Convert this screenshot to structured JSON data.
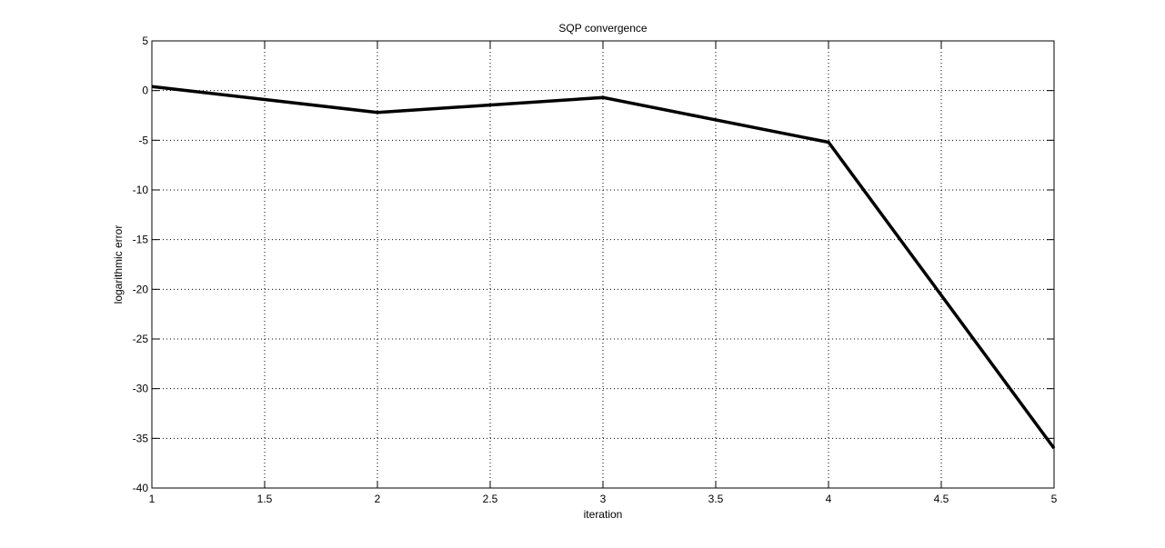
{
  "chart_data": {
    "type": "line",
    "title": "SQP convergence",
    "xlabel": "iteration",
    "ylabel": "logarithmic error",
    "xlim": [
      1,
      5
    ],
    "ylim": [
      -40,
      5
    ],
    "x_ticks": [
      "1",
      "1.5",
      "2",
      "2.5",
      "3",
      "3.5",
      "4",
      "4.5",
      "5"
    ],
    "y_ticks": [
      "5",
      "0",
      "-5",
      "-10",
      "-15",
      "-20",
      "-25",
      "-30",
      "-35",
      "-40"
    ],
    "grid": true,
    "series": [
      {
        "x": [
          1,
          2,
          3,
          4,
          5
        ],
        "y": [
          0.4,
          -2.2,
          -0.7,
          -5.2,
          -36
        ],
        "color": "#000000"
      }
    ]
  }
}
